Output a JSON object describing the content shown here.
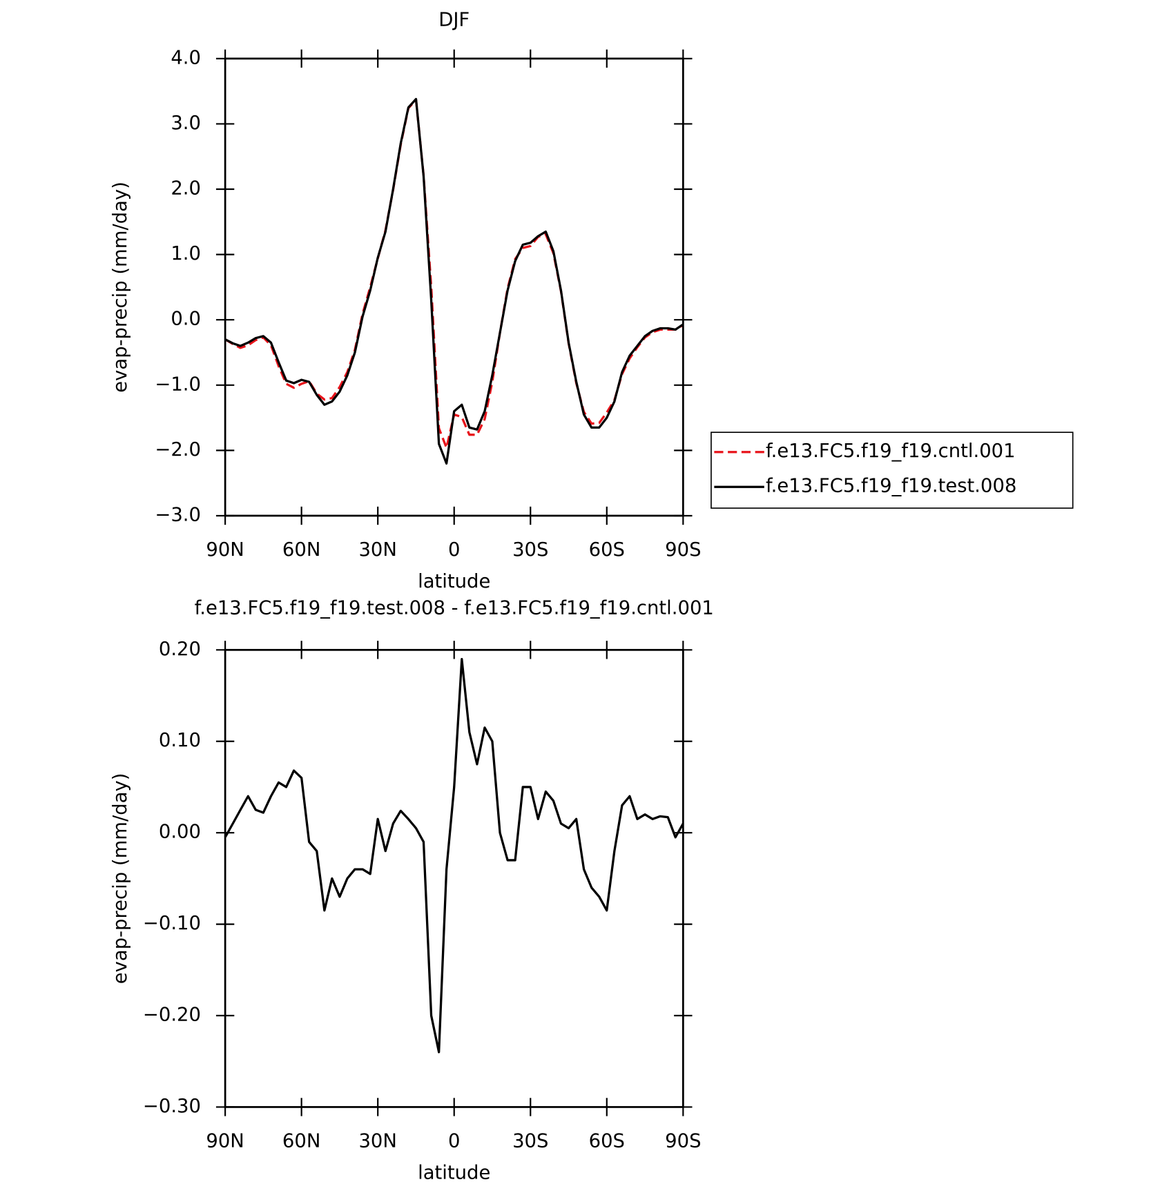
{
  "chart_data": [
    {
      "type": "line",
      "title": "DJF",
      "x_label": "latitude",
      "y_label": "evap-precip (mm/day)",
      "x": [
        90,
        87,
        84,
        81,
        78,
        75,
        72,
        69,
        66,
        63,
        60,
        57,
        54,
        51,
        48,
        45,
        42,
        39,
        36,
        33,
        30,
        27,
        24,
        21,
        18,
        15,
        12,
        9,
        6,
        3,
        0,
        -3,
        -6,
        -9,
        -12,
        -15,
        -18,
        -21,
        -24,
        -27,
        -30,
        -33,
        -36,
        -39,
        -42,
        -45,
        -48,
        -51,
        -54,
        -57,
        -60,
        -63,
        -66,
        -69,
        -72,
        -75,
        -78,
        -81,
        -84,
        -87,
        -90
      ],
      "series": [
        {
          "name": "f.e13.FC5.f19_f19.cntl.001",
          "color": "#e8141b",
          "dash": true,
          "values": [
            -0.3,
            -0.37,
            -0.43,
            -0.39,
            -0.31,
            -0.27,
            -0.39,
            -0.71,
            -0.98,
            -1.04,
            -0.98,
            -0.94,
            -1.13,
            -1.22,
            -1.2,
            -1.03,
            -0.8,
            -0.46,
            0.09,
            0.5,
            0.94,
            1.37,
            1.99,
            2.68,
            3.24,
            3.37,
            2.21,
            0.5,
            -1.66,
            -1.96,
            -1.45,
            -1.49,
            -1.76,
            -1.76,
            -1.52,
            -0.95,
            -0.2,
            0.48,
            0.93,
            1.1,
            1.13,
            1.27,
            1.31,
            1.02,
            0.44,
            -0.36,
            -0.97,
            -1.41,
            -1.59,
            -1.58,
            -1.42,
            -1.23,
            -0.83,
            -0.59,
            -0.42,
            -0.27,
            -0.19,
            -0.15,
            -0.15,
            -0.15,
            -0.08
          ]
        },
        {
          "name": "f.e13.FC5.f19_f19.test.008",
          "color": "#000000",
          "dash": false,
          "values": [
            -0.3,
            -0.36,
            -0.4,
            -0.35,
            -0.28,
            -0.25,
            -0.35,
            -0.65,
            -0.93,
            -0.97,
            -0.92,
            -0.95,
            -1.15,
            -1.3,
            -1.25,
            -1.1,
            -0.85,
            -0.5,
            0.05,
            0.45,
            0.95,
            1.35,
            2.0,
            2.7,
            3.25,
            3.38,
            2.2,
            0.3,
            -1.9,
            -2.2,
            -1.4,
            -1.3,
            -1.65,
            -1.68,
            -1.4,
            -0.85,
            -0.2,
            0.45,
            0.9,
            1.15,
            1.18,
            1.28,
            1.35,
            1.05,
            0.45,
            -0.35,
            -0.95,
            -1.45,
            -1.65,
            -1.65,
            -1.5,
            -1.25,
            -0.8,
            -0.55,
            -0.4,
            -0.25,
            -0.17,
            -0.13,
            -0.13,
            -0.15,
            -0.07
          ]
        }
      ],
      "xlim": [
        90,
        -90
      ],
      "xticks": [
        {
          "value": 90,
          "label": "90N"
        },
        {
          "value": 60,
          "label": "60N"
        },
        {
          "value": 30,
          "label": "30N"
        },
        0,
        {
          "value": -30,
          "label": "30S"
        },
        {
          "value": -60,
          "label": "60S"
        },
        {
          "value": -90,
          "label": "90S"
        }
      ],
      "ylim": [
        -3,
        4
      ],
      "yticks": [
        {
          "value": -3,
          "label": "−3.0"
        },
        {
          "value": -2,
          "label": "−2.0"
        },
        {
          "value": -1,
          "label": "−1.0"
        },
        {
          "value": 0,
          "label": "0.0"
        },
        {
          "value": 1,
          "label": "1.0"
        },
        {
          "value": 2,
          "label": "2.0"
        },
        {
          "value": 3,
          "label": "3.0"
        },
        {
          "value": 4,
          "label": "4.0"
        }
      ],
      "legend": "right"
    },
    {
      "type": "line",
      "title": "f.e13.FC5.f19_f19.test.008 - f.e13.FC5.f19_f19.cntl.001",
      "x_label": "latitude",
      "y_label": "evap-precip (mm/day)",
      "x": [
        90,
        87,
        84,
        81,
        78,
        75,
        72,
        69,
        66,
        63,
        60,
        57,
        54,
        51,
        48,
        45,
        42,
        39,
        36,
        33,
        30,
        27,
        24,
        21,
        18,
        15,
        12,
        9,
        6,
        3,
        0,
        -3,
        -6,
        -9,
        -12,
        -15,
        -18,
        -21,
        -24,
        -27,
        -30,
        -33,
        -36,
        -39,
        -42,
        -45,
        -48,
        -51,
        -54,
        -57,
        -60,
        -63,
        -66,
        -69,
        -72,
        -75,
        -78,
        -81,
        -84,
        -87,
        -90
      ],
      "color": "#000000",
      "values": [
        -0.005,
        0.01,
        0.025,
        0.04,
        0.025,
        0.022,
        0.04,
        0.055,
        0.05,
        0.068,
        0.06,
        -0.01,
        -0.02,
        -0.085,
        -0.05,
        -0.07,
        -0.05,
        -0.04,
        -0.04,
        -0.045,
        0.015,
        -0.02,
        0.01,
        0.024,
        0.015,
        0.005,
        -0.01,
        -0.2,
        -0.24,
        -0.04,
        0.05,
        0.19,
        0.11,
        0.075,
        0.115,
        0.1,
        0.0,
        -0.03,
        -0.03,
        0.05,
        0.05,
        0.015,
        0.045,
        0.035,
        0.01,
        0.005,
        0.015,
        -0.04,
        -0.06,
        -0.07,
        -0.085,
        -0.02,
        0.03,
        0.04,
        0.015,
        0.02,
        0.015,
        0.018,
        0.017,
        -0.005,
        0.01
      ],
      "xlim": [
        90,
        -90
      ],
      "xticks": [
        {
          "value": 90,
          "label": "90N"
        },
        {
          "value": 60,
          "label": "60N"
        },
        {
          "value": 30,
          "label": "30N"
        },
        0,
        {
          "value": -30,
          "label": "30S"
        },
        {
          "value": -60,
          "label": "60S"
        },
        {
          "value": -90,
          "label": "90S"
        }
      ],
      "ylim": [
        -0.3,
        0.2
      ],
      "yticks": [
        {
          "value": -0.3,
          "label": "−0.30"
        },
        {
          "value": -0.2,
          "label": "−0.20"
        },
        {
          "value": -0.1,
          "label": "−0.10"
        },
        {
          "value": 0,
          "label": "0.00"
        },
        {
          "value": 0.1,
          "label": "0.10"
        },
        {
          "value": 0.2,
          "label": "0.20"
        }
      ]
    }
  ]
}
